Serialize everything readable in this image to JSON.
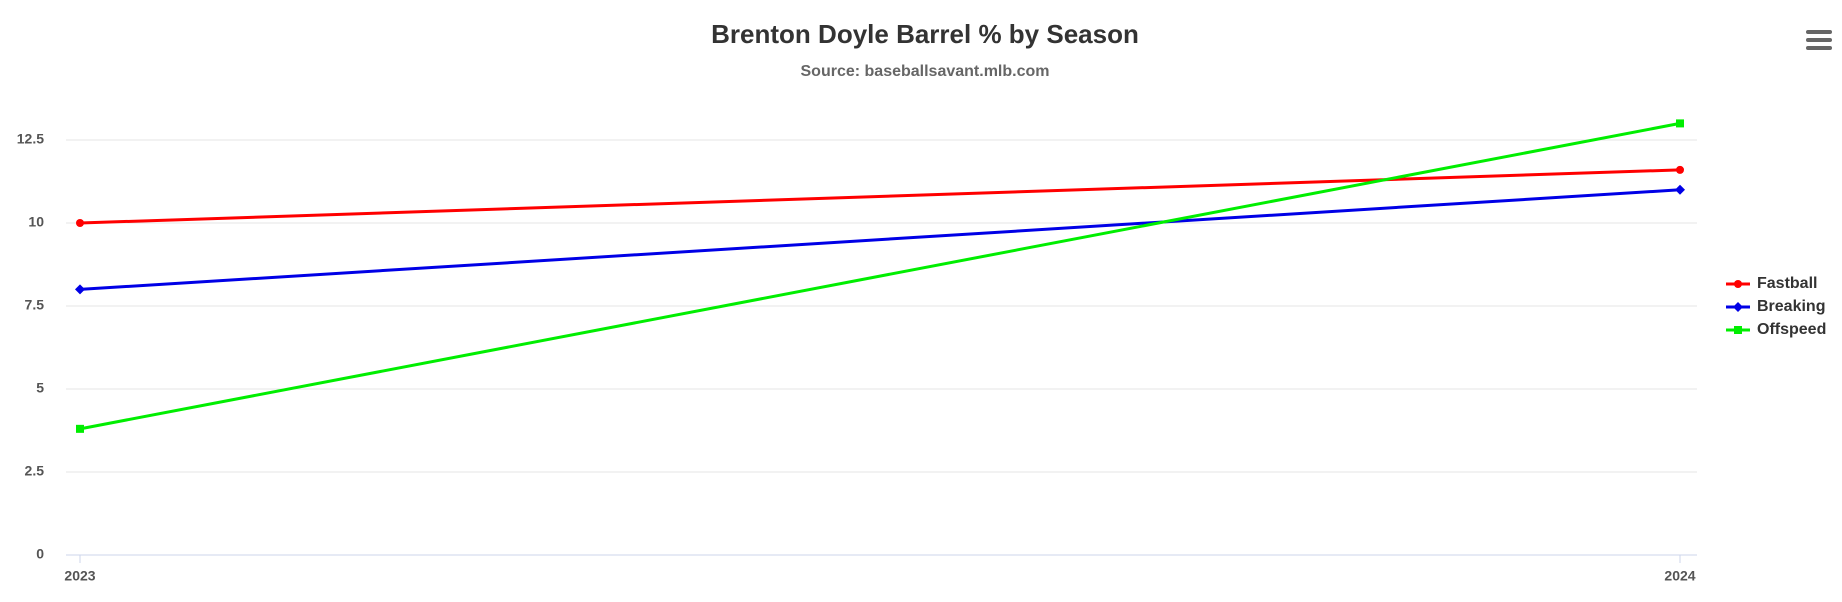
{
  "chart_data": {
    "type": "line",
    "title": "Brenton Doyle Barrel % by Season",
    "subtitle": "Source: baseballsavant.mlb.com",
    "categories": [
      "2023",
      "2024"
    ],
    "series": [
      {
        "name": "Fastball",
        "color": "#ff0000",
        "marker": "circle",
        "values": [
          10,
          11.6
        ]
      },
      {
        "name": "Breaking",
        "color": "#0000e6",
        "marker": "diamond",
        "values": [
          8,
          11.0
        ]
      },
      {
        "name": "Offspeed",
        "color": "#00ee00",
        "marker": "square",
        "values": [
          3.8,
          13.0
        ]
      }
    ],
    "ylim": [
      0,
      12.5
    ],
    "yticks": [
      0,
      2.5,
      5,
      7.5,
      10,
      12.5
    ],
    "grid": true,
    "legend": "right"
  }
}
